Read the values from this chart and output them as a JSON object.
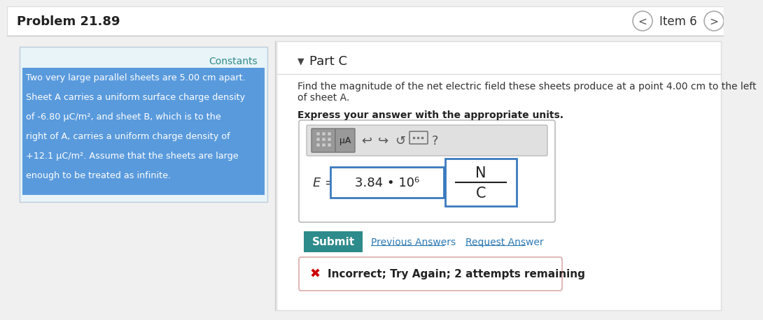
{
  "bg_color": "#f0f0f0",
  "header_bg": "#ffffff",
  "header_text": "Problem 21.89",
  "header_item": "Item 6",
  "left_panel_bg": "#e8f4f8",
  "constants_label": "Constants",
  "constants_color": "#2e8b8b",
  "problem_text_lines": [
    "Two very large parallel sheets are 5.00 cm apart.",
    "Sheet A carries a uniform surface charge density",
    "of -6.80 μC/m², and sheet B, which is to the",
    "right of A, carries a uniform charge density of",
    "+12.1 μC/m². Assume that the sheets are large",
    "enough to be treated as infinite."
  ],
  "highlight_color": "#4a90d9",
  "part_c_label": "Part C",
  "description_line1": "Find the magnitude of the net electric field these sheets produce at a point 4.00 cm to the left",
  "description_line2": "of sheet A.",
  "bold_label": "Express your answer with the appropriate units.",
  "equation_label": "E =",
  "answer_value": "3.84 • 10⁶",
  "units_top": "N",
  "units_bottom": "C",
  "submit_bg": "#2e8b8b",
  "submit_text": "Submit",
  "prev_answers_text": "Previous Answers",
  "request_text": "Request Answer",
  "link_color": "#2e7bb5",
  "error_text": "Incorrect; Try Again; 2 attempts remaining",
  "error_color": "#cc0000",
  "input_box_color": "#3a7abf",
  "units_box_color": "#3a7abf"
}
